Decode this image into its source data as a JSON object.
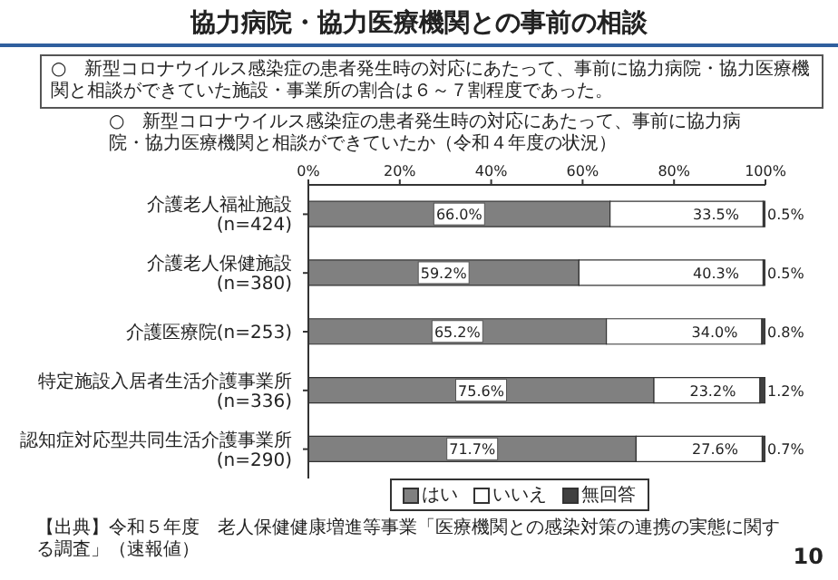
{
  "chart_data": {
    "type": "bar",
    "orientation": "horizontal",
    "stacked": true,
    "title": "協力病院・協力医療機関との事前の相談",
    "subtitle": "○　新型コロナウイルス感染症の患者発生時の対応にあたって、事前に協力病院・協力医療機関と相談ができていたか（令和４年度の状況）",
    "annotations": [
      "○　新型コロナウイルス感染症の患者発生時の対応にあたって、事前に協力病院・協力医療機関と相談ができていた施設・事業所の割合は６～７割程度であった。",
      "【出典】令和５年度　老人保健健康増進等事業「医療機関との感染対策の連携の実態に関する調査」（速報値）",
      "10"
    ],
    "categories": [
      "介護老人福祉施設(n=424)",
      "介護老人保健施設(n=380)",
      "介護医療院(n=253)",
      "特定施設入居者生活介護事業所(n=336)",
      "認知症対応型共同生活介護事業所(n=290)"
    ],
    "series": [
      {
        "name": "はい",
        "color": "#808080",
        "values": [
          66.0,
          59.2,
          65.2,
          75.6,
          71.7
        ],
        "value_labels": [
          "66.0%",
          "59.2%",
          "65.2%",
          "75.6%",
          "71.7%"
        ]
      },
      {
        "name": "いいえ",
        "color": "#ffffff",
        "values": [
          33.5,
          40.3,
          34.0,
          23.2,
          27.6
        ],
        "value_labels": [
          "33.5%",
          "40.3%",
          "34.0%",
          "23.2%",
          "27.6%"
        ]
      },
      {
        "name": "無回答",
        "color": "#404040",
        "values": [
          0.5,
          0.5,
          0.8,
          1.2,
          0.7
        ],
        "value_labels": [
          "0.5%",
          "0.5%",
          "0.8%",
          "1.2%",
          "0.7%"
        ]
      }
    ],
    "xlim": [
      0,
      100
    ],
    "xticks": [
      {
        "value": 0,
        "label": "0%"
      },
      {
        "value": 20,
        "label": "20%"
      },
      {
        "value": 40,
        "label": "40%"
      },
      {
        "value": 60,
        "label": "60%"
      },
      {
        "value": 80,
        "label": "80%"
      },
      {
        "value": 100,
        "label": "100%"
      }
    ],
    "legend": "bottom",
    "grid": false
  }
}
